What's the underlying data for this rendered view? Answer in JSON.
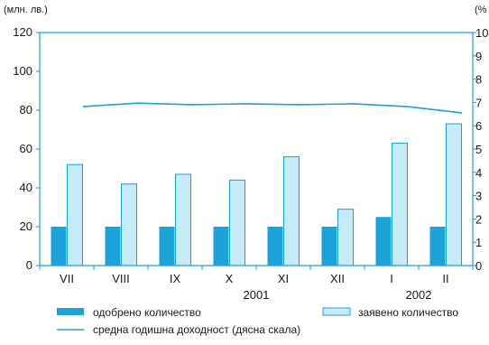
{
  "chart_data": {
    "type": "bar",
    "categories": [
      "VII",
      "VIII",
      "IX",
      "X",
      "XI",
      "XII",
      "I",
      "II"
    ],
    "year_labels": [
      {
        "label": "2001",
        "after_category": "X"
      },
      {
        "label": "2002",
        "after_category": "I"
      }
    ],
    "left_axis": {
      "unit": "(млн. лв.)",
      "ylim": [
        0,
        120
      ],
      "ticks": [
        0,
        20,
        40,
        60,
        80,
        100,
        120
      ]
    },
    "right_axis": {
      "unit": "(%",
      "ylim": [
        0,
        10
      ],
      "ticks": [
        0,
        1,
        2,
        3,
        4,
        5,
        6,
        7,
        8,
        9,
        10
      ]
    },
    "series": [
      {
        "name": "одобрено количество",
        "kind": "bar",
        "axis": "left",
        "color": "#1aa3d9",
        "values": [
          20,
          20,
          20,
          20,
          20,
          20,
          25,
          20
        ]
      },
      {
        "name": "заявено количество",
        "kind": "bar",
        "axis": "left",
        "color": "#c6ebf7",
        "stroke": "#1aa3d9",
        "values": [
          52,
          42,
          47,
          44,
          56,
          29,
          63,
          73
        ]
      },
      {
        "name": "средна годишна доходност (дясна скала)",
        "kind": "line",
        "axis": "right",
        "color": "#1aa3d9",
        "values": [
          6.82,
          6.97,
          6.9,
          6.94,
          6.9,
          6.94,
          6.82,
          6.55
        ]
      }
    ],
    "grid": false,
    "legend_position": "bottom"
  }
}
